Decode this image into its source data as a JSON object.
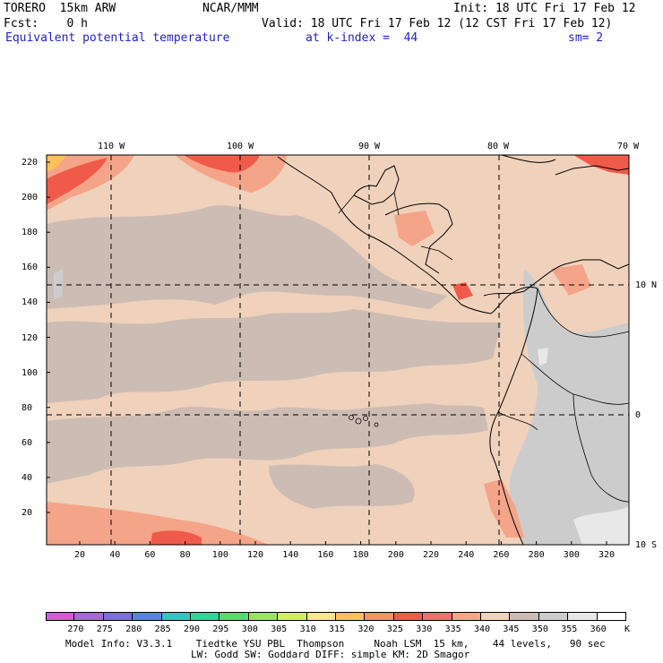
{
  "header": {
    "model": "TORERO  15km ARW",
    "center": "NCAR/MMM",
    "init": "Init: 18 UTC Fri 17 Feb 12",
    "fcst": "Fcst:    0 h",
    "valid": "Valid: 18 UTC Fri 17 Feb 12 (12 CST Fri 17 Feb 12)",
    "field": "Equivalent potential temperature",
    "level": "at k-index =  44",
    "smooth": "sm= 2"
  },
  "map": {
    "lon_labels": [
      "110 W",
      "100 W",
      "90 W",
      "80 W",
      "70 W"
    ],
    "lat_labels": [
      "10 N",
      "0",
      "10 S"
    ],
    "y_ticks": [
      "220",
      "200",
      "180",
      "160",
      "140",
      "120",
      "100",
      "80",
      "60",
      "40",
      "20"
    ],
    "x_ticks": [
      "20",
      "40",
      "60",
      "80",
      "100",
      "120",
      "140",
      "160",
      "180",
      "200",
      "220",
      "240",
      "260",
      "280",
      "300",
      "320"
    ]
  },
  "colorbar": {
    "labels": [
      "270",
      "275",
      "280",
      "285",
      "290",
      "295",
      "300",
      "305",
      "310",
      "315",
      "320",
      "325",
      "330",
      "335",
      "340",
      "345",
      "350",
      "355",
      "360"
    ],
    "unit": "K",
    "colors": [
      "#d65ad2",
      "#a56ad6",
      "#7a6ee0",
      "#5a82e6",
      "#2ec8c0",
      "#2ad89a",
      "#55dc6e",
      "#9ae65a",
      "#d2ee5a",
      "#fae68c",
      "#fac05a",
      "#f89262",
      "#f05a4a",
      "#f0706c",
      "#f4a488",
      "#f0d2bc",
      "#cdbcb4",
      "#cccccc",
      "#e8e8e8",
      "#ffffff"
    ]
  },
  "footer": {
    "line1": "Model Info: V3.3.1    Tiedtke YSU PBL  Thompson     Noah LSM  15 km,    44 levels,   90 sec",
    "line2": "LW: Godd SW: Goddard DIFF: simple KM: 2D Smagor"
  }
}
